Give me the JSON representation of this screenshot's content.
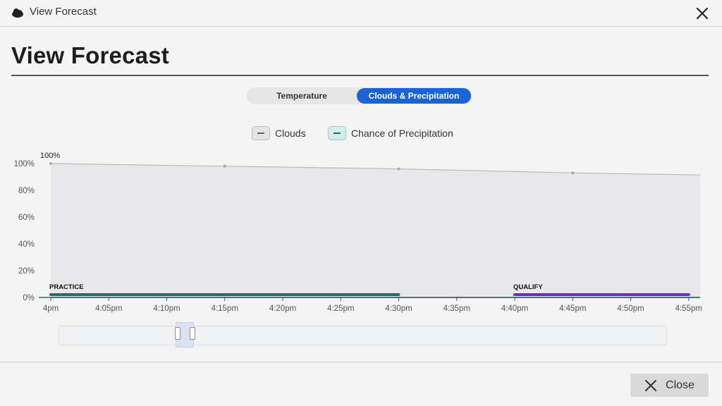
{
  "window": {
    "title": "View Forecast",
    "icon": "cloud-icon",
    "close_icon": "close-icon"
  },
  "page": {
    "heading": "View Forecast"
  },
  "tabs": [
    {
      "label": "Temperature",
      "active": false
    },
    {
      "label": "Clouds & Precipitation",
      "active": true
    }
  ],
  "legend": [
    {
      "label": "Clouds",
      "color": "#9e9e9e"
    },
    {
      "label": "Chance of Precipitation",
      "color": "#1c6e67"
    }
  ],
  "footer": {
    "close_label": "Close",
    "close_icon": "close-icon"
  },
  "chart_data": {
    "type": "area",
    "x": [
      "4pm",
      "4:05pm",
      "4:10pm",
      "4:15pm",
      "4:20pm",
      "4:25pm",
      "4:30pm",
      "4:35pm",
      "4:40pm",
      "4:45pm",
      "4:50pm",
      "4:55pm"
    ],
    "y_ticks": [
      "0%",
      "20%",
      "40%",
      "60%",
      "80%",
      "100%"
    ],
    "ylim": [
      0,
      100
    ],
    "series": [
      {
        "name": "Clouds",
        "type": "area",
        "color": "#b9b9b9",
        "points": [
          [
            0,
            100
          ],
          [
            15,
            98
          ],
          [
            30,
            96
          ],
          [
            45,
            93
          ],
          [
            56,
            91.5
          ]
        ],
        "markers": [
          [
            0,
            100
          ],
          [
            15,
            98
          ],
          [
            30,
            96
          ],
          [
            45,
            93
          ]
        ],
        "data_label": "100%"
      },
      {
        "name": "Chance of Precipitation",
        "type": "line",
        "color": "#1c6e67",
        "points": [
          [
            0,
            0
          ],
          [
            56,
            0
          ]
        ]
      }
    ],
    "sessions": [
      {
        "label": "PRACTICE",
        "start": 0,
        "end": 30,
        "color": "#1c6e67"
      },
      {
        "label": "QUALIFY",
        "start": 40,
        "end": 55,
        "color": "#7a1ee0"
      }
    ],
    "grid": false,
    "legend_position": "top-center"
  }
}
